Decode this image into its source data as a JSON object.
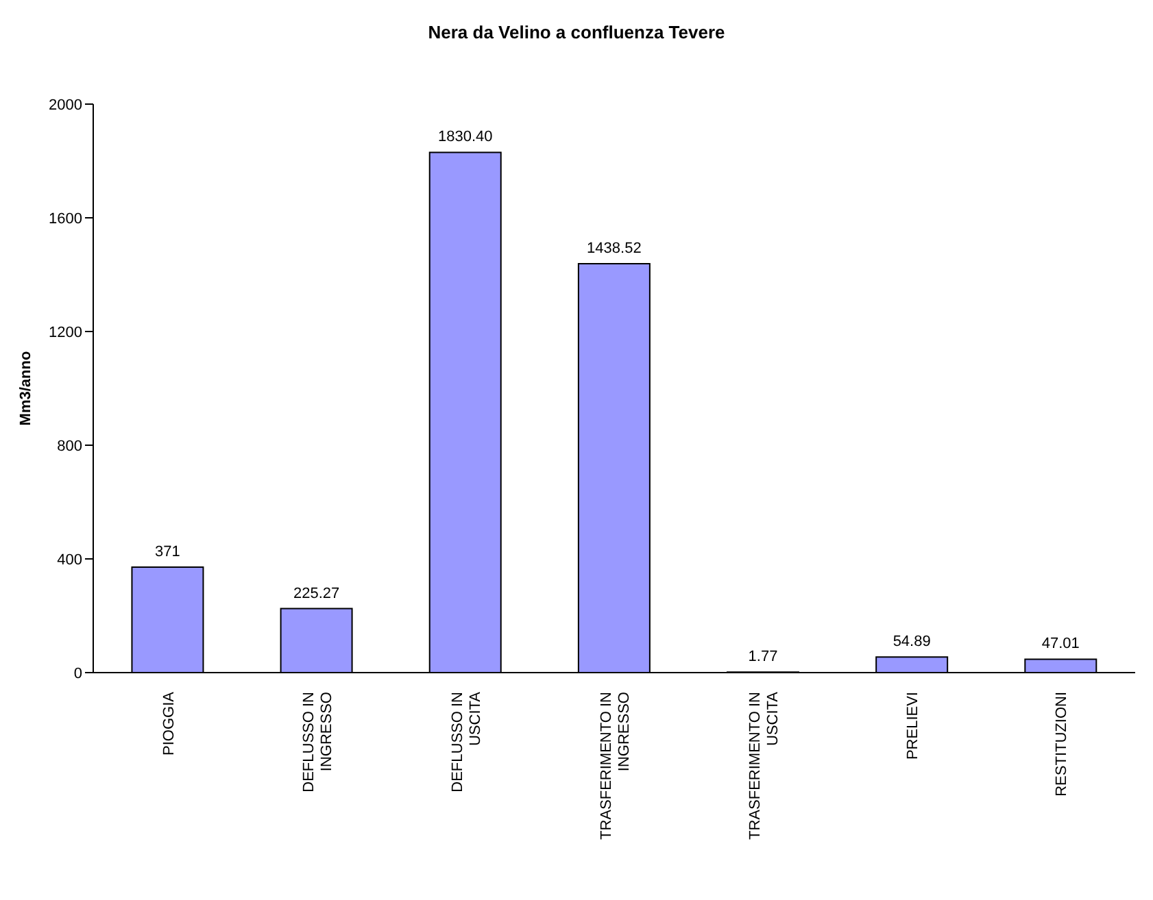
{
  "chart_data": {
    "type": "bar",
    "title": "Nera da Velino a confluenza Tevere",
    "ylabel": "Mm3/anno",
    "categories": [
      "PIOGGIA",
      "DEFLUSSO IN INGRESSO",
      "DEFLUSSO IN USCITA",
      "TRASFERIMENTO IN INGRESSO",
      "TRASFERIMENTO IN USCITA",
      "PRELIEVI",
      "RESTITUZIONI"
    ],
    "values": [
      371,
      225.27,
      1830.4,
      1438.52,
      1.77,
      54.89,
      47.01
    ],
    "value_labels": [
      "371",
      "225.27",
      "1830.40",
      "1438.52",
      "1.77",
      "54.89",
      "47.01"
    ],
    "color": "#9999ff",
    "ylim": [
      0,
      2000
    ],
    "yticks": [
      0,
      400,
      800,
      1200,
      1600,
      2000
    ],
    "grid": false,
    "legend": false
  }
}
